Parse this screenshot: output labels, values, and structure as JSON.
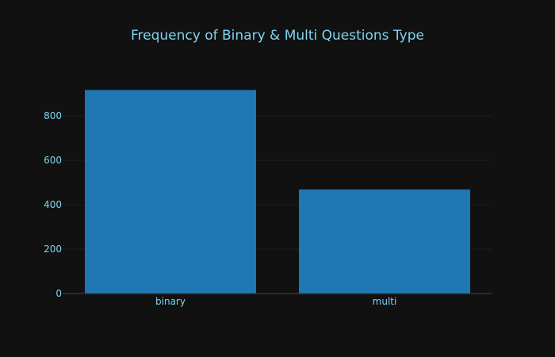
{
  "chart_data": {
    "type": "bar",
    "title": "Frequency of Binary & Multi Questions Type",
    "xlabel": "",
    "ylabel": "",
    "categories": [
      "binary",
      "multi"
    ],
    "values": [
      917,
      469
    ],
    "ylim": [
      0,
      965
    ],
    "y_ticks": [
      0,
      200,
      400,
      600,
      800
    ],
    "y_tick_labels": [
      "0",
      "200",
      "400",
      "600",
      "800"
    ],
    "grid": true,
    "legend": "none"
  },
  "colors": {
    "background": "#111111",
    "bar": "#1f77b4",
    "text": "#7fd4f0",
    "grid": "#1f1f1f",
    "axis_line": "#444444"
  }
}
